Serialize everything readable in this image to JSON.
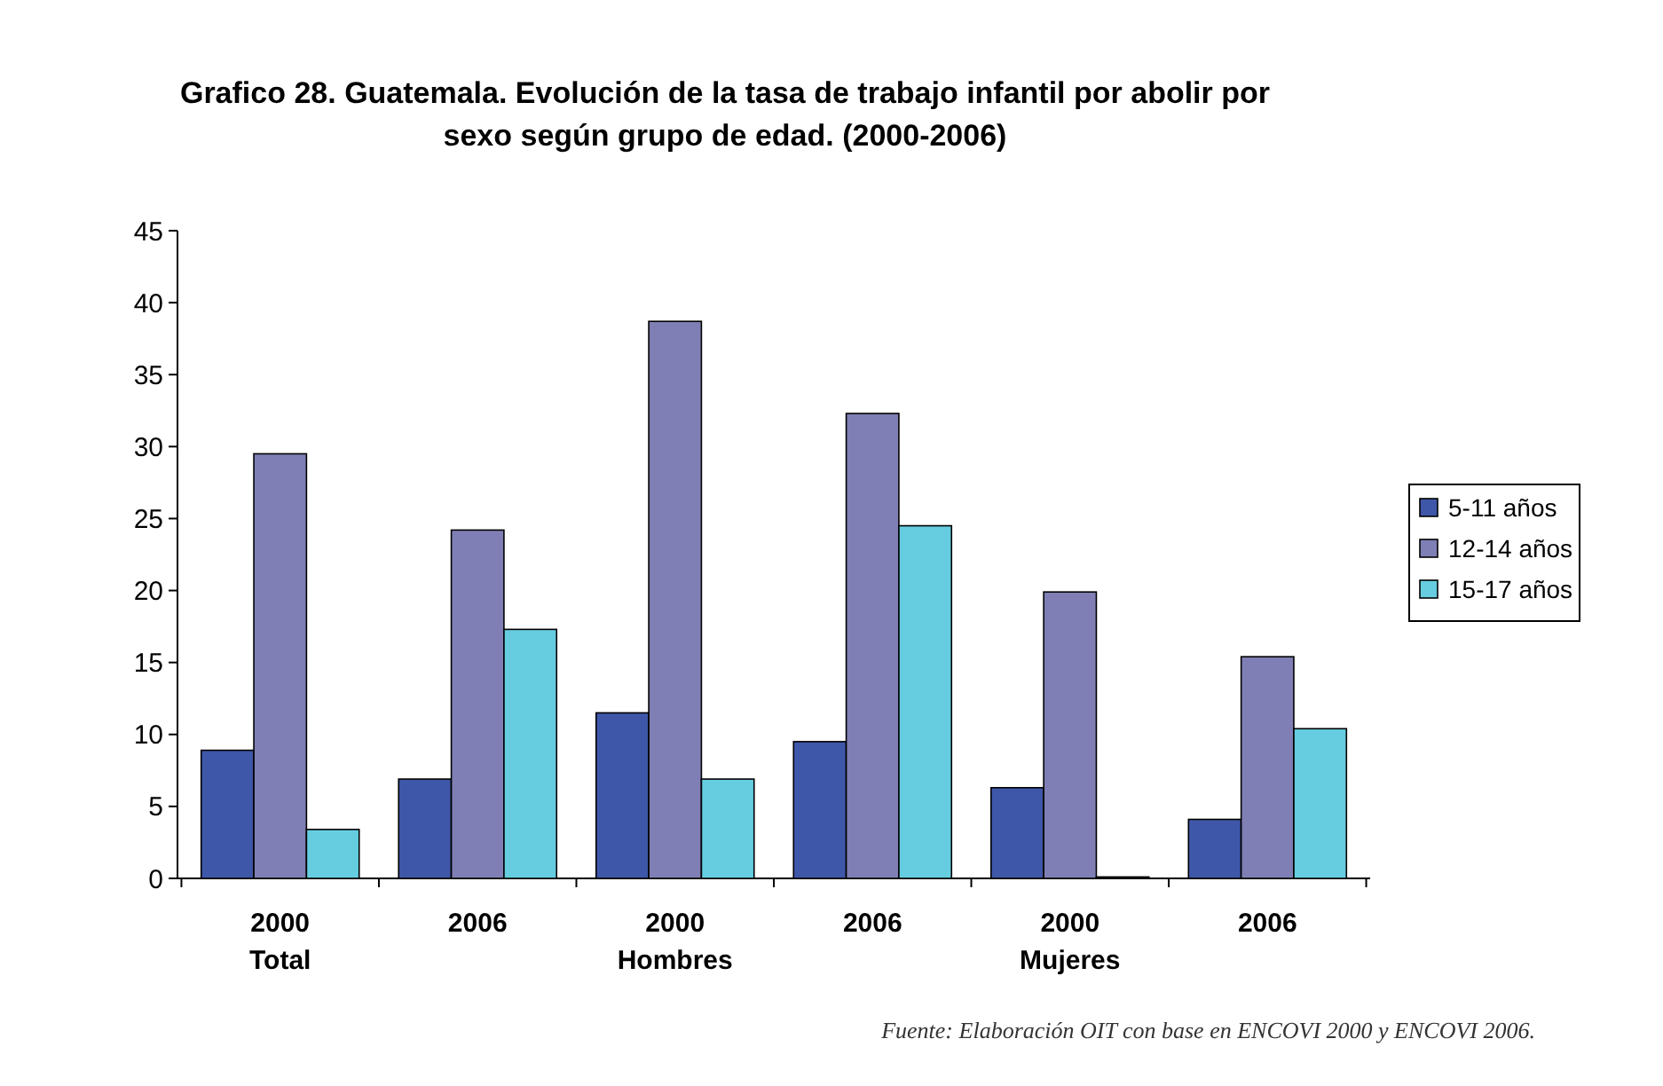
{
  "chart_data": {
    "type": "bar",
    "title": "Grafico 28. Guatemala. Evolución de la tasa de trabajo infantil por abolir por\nsexo según grupo de edad. (2000-2006)",
    "categories": [
      "2000\nTotal",
      "2006",
      "2000\nHombres",
      "2006",
      "2000\nMujeres",
      "2006"
    ],
    "series": [
      {
        "name": "5-11 años",
        "color": "#3f57a8",
        "values": [
          8.9,
          6.9,
          11.5,
          9.5,
          6.3,
          4.1
        ]
      },
      {
        "name": "12-14 años",
        "color": "#7f7fb5",
        "values": [
          29.5,
          24.2,
          38.7,
          32.3,
          19.9,
          15.4
        ]
      },
      {
        "name": "15-17 años",
        "color": "#66cde0",
        "values": [
          3.4,
          17.3,
          6.9,
          24.5,
          0.1,
          10.4
        ]
      }
    ],
    "ylim": [
      0,
      45
    ],
    "yticks": [
      0,
      5,
      10,
      15,
      20,
      25,
      30,
      35,
      40,
      45
    ],
    "grid": false,
    "legend": "right",
    "annotations": [
      "Fuente: Elaboración OIT con base en ENCOVI 2000 y ENCOVI 2006."
    ]
  }
}
